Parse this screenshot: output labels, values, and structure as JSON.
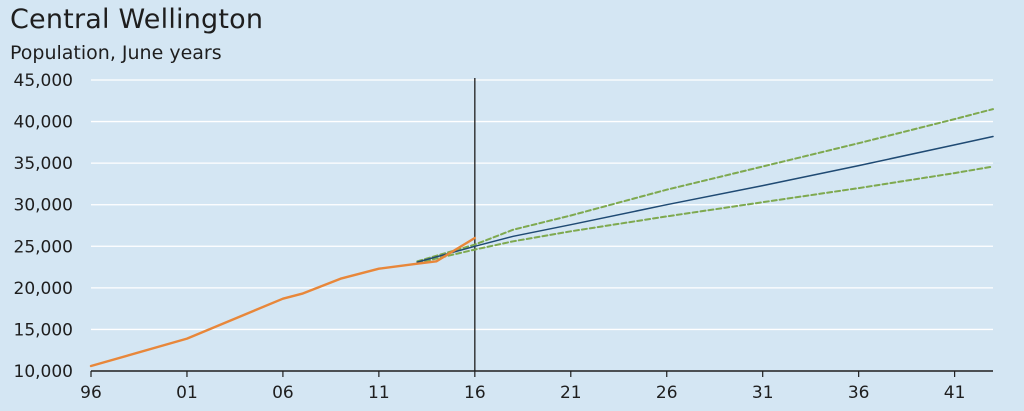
{
  "chart_data": {
    "type": "line",
    "title": "Central Wellington",
    "subtitle": "Population, June years",
    "xlabel": "",
    "ylabel": "",
    "xlim": [
      1996,
      2043
    ],
    "ylim": [
      10000,
      45000
    ],
    "grid": true,
    "legend": "none",
    "y_ticks": [
      10000,
      15000,
      20000,
      25000,
      30000,
      35000,
      40000,
      45000
    ],
    "y_tick_labels": [
      "10,000",
      "15,000",
      "20,000",
      "25,000",
      "30,000",
      "35,000",
      "40,000",
      "45,000"
    ],
    "x_ticks": [
      1996,
      2001,
      2006,
      2011,
      2016,
      2021,
      2026,
      2031,
      2036,
      2041
    ],
    "x_tick_labels": [
      "96",
      "01",
      "06",
      "11",
      "16",
      "21",
      "26",
      "31",
      "36",
      "41"
    ],
    "divider_year": 2016,
    "series": [
      {
        "kind": "history",
        "color": "#e8873a",
        "style": "solid",
        "x": [
          1996,
          2001,
          2006,
          2007,
          2009,
          2011,
          2013,
          2014,
          2016
        ],
        "values": [
          10600,
          13900,
          18700,
          19300,
          21100,
          22300,
          22900,
          23200,
          26000
        ]
      },
      {
        "kind": "projection-medium",
        "color": "#1f4a73",
        "style": "solid",
        "x": [
          2013,
          2016,
          2018,
          2021,
          2026,
          2031,
          2036,
          2041,
          2043
        ],
        "values": [
          23100,
          25000,
          26200,
          27600,
          30000,
          32300,
          34700,
          37200,
          38200
        ]
      },
      {
        "kind": "projection-high",
        "color": "#7ea94f",
        "style": "dashed",
        "x": [
          2013,
          2016,
          2018,
          2021,
          2026,
          2031,
          2036,
          2041,
          2043
        ],
        "values": [
          23200,
          25200,
          27000,
          28700,
          31800,
          34600,
          37400,
          40300,
          41500
        ]
      },
      {
        "kind": "projection-low",
        "color": "#7ea94f",
        "style": "dashed",
        "x": [
          2013,
          2016,
          2018,
          2021,
          2026,
          2031,
          2036,
          2041,
          2043
        ],
        "values": [
          23000,
          24600,
          25600,
          26800,
          28600,
          30300,
          32000,
          33800,
          34600
        ]
      }
    ]
  }
}
